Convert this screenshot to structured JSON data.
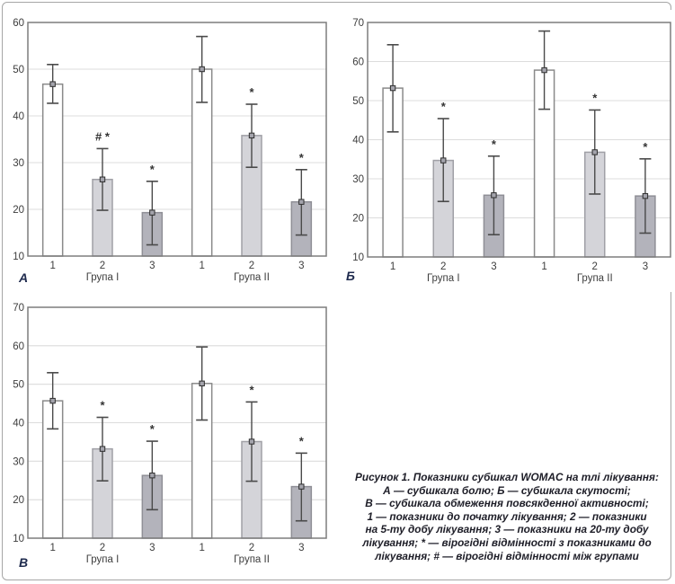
{
  "figure": {
    "caption": {
      "lines": [
        "Рисунок 1. Показники субшкал WOMAC на тлі лікування:",
        "А — субшкала болю; Б — субшкала скутості;",
        "В — субшкала обмеження повсякденної активності;",
        "1 — показники до початку лікування; 2 — показники",
        "на 5-ту добу лікування; 3 — показники на 20-ту добу",
        "лікування; * — вірогідні відмінності з показниками до",
        "лікування; # — вірогідні відмінності між групами"
      ]
    }
  },
  "colors": {
    "bar_white": "#ffffff",
    "bar_light": "#d4d4d9",
    "bar_dark": "#b3b3bb",
    "bar_stroke_white": "#8a8a8a",
    "bar_stroke_light": "#a0a0a6",
    "bar_stroke_dark": "#8f8f96",
    "error_bar": "#4a4a4a",
    "marker_fill": "#a4a4ac",
    "marker_stroke": "#2e2e2e",
    "gridline": "#dcdcdc",
    "plot_border": "#7d7d7d",
    "tick_text": "#3d3d3d",
    "annotation": "#333333",
    "panel_letter": "#1e2a4d"
  },
  "chart_data": [
    {
      "type": "bar",
      "panel_label": "А",
      "title": "",
      "xlabel": "",
      "ylabel": "",
      "ylim": [
        10,
        60
      ],
      "yticks": [
        10,
        20,
        30,
        40,
        50,
        60
      ],
      "grid": "horizontal",
      "legend": "none",
      "group_labels": [
        "Група I",
        "Група II"
      ],
      "categories": [
        "1",
        "2",
        "3",
        "1",
        "2",
        "3"
      ],
      "bars": [
        {
          "label": "1",
          "group": "Група I",
          "value": 46.8,
          "err_lo": 42.7,
          "err_hi": 51.0,
          "shade": "white",
          "annotation": ""
        },
        {
          "label": "2",
          "group": "Група I",
          "value": 26.4,
          "err_lo": 19.8,
          "err_hi": 33.0,
          "shade": "light",
          "annotation": "# *"
        },
        {
          "label": "3",
          "group": "Група I",
          "value": 19.3,
          "err_lo": 12.4,
          "err_hi": 26.0,
          "shade": "dark",
          "annotation": "*"
        },
        {
          "label": "1",
          "group": "Група II",
          "value": 50.0,
          "err_lo": 42.9,
          "err_hi": 57.0,
          "shade": "white",
          "annotation": ""
        },
        {
          "label": "2",
          "group": "Група II",
          "value": 35.8,
          "err_lo": 29.0,
          "err_hi": 42.5,
          "shade": "light",
          "annotation": "*"
        },
        {
          "label": "3",
          "group": "Група II",
          "value": 21.6,
          "err_lo": 14.5,
          "err_hi": 28.5,
          "shade": "dark",
          "annotation": "*"
        }
      ]
    },
    {
      "type": "bar",
      "panel_label": "Б",
      "title": "",
      "xlabel": "",
      "ylabel": "",
      "ylim": [
        10,
        70
      ],
      "yticks": [
        10,
        20,
        30,
        40,
        50,
        60,
        70
      ],
      "grid": "horizontal",
      "legend": "none",
      "group_labels": [
        "Група I",
        "Група II"
      ],
      "categories": [
        "1",
        "2",
        "3",
        "1",
        "2",
        "3"
      ],
      "bars": [
        {
          "label": "1",
          "group": "Група I",
          "value": 53.2,
          "err_lo": 42.0,
          "err_hi": 64.3,
          "shade": "white",
          "annotation": ""
        },
        {
          "label": "2",
          "group": "Група I",
          "value": 34.7,
          "err_lo": 24.2,
          "err_hi": 45.4,
          "shade": "light",
          "annotation": "*"
        },
        {
          "label": "3",
          "group": "Група I",
          "value": 25.8,
          "err_lo": 15.7,
          "err_hi": 35.8,
          "shade": "dark",
          "annotation": "*"
        },
        {
          "label": "1",
          "group": "Група II",
          "value": 57.8,
          "err_lo": 47.8,
          "err_hi": 67.8,
          "shade": "white",
          "annotation": ""
        },
        {
          "label": "2",
          "group": "Група II",
          "value": 36.8,
          "err_lo": 26.1,
          "err_hi": 47.6,
          "shade": "light",
          "annotation": "*"
        },
        {
          "label": "3",
          "group": "Група II",
          "value": 25.6,
          "err_lo": 16.1,
          "err_hi": 35.1,
          "shade": "dark",
          "annotation": "*"
        }
      ]
    },
    {
      "type": "bar",
      "panel_label": "В",
      "title": "",
      "xlabel": "",
      "ylabel": "",
      "ylim": [
        10,
        70
      ],
      "yticks": [
        10,
        20,
        30,
        40,
        50,
        60,
        70
      ],
      "grid": "horizontal",
      "legend": "none",
      "group_labels": [
        "Група I",
        "Група II"
      ],
      "categories": [
        "1",
        "2",
        "3",
        "1",
        "2",
        "3"
      ],
      "bars": [
        {
          "label": "1",
          "group": "Група I",
          "value": 45.7,
          "err_lo": 38.4,
          "err_hi": 53.0,
          "shade": "white",
          "annotation": ""
        },
        {
          "label": "2",
          "group": "Група I",
          "value": 33.2,
          "err_lo": 24.9,
          "err_hi": 41.4,
          "shade": "light",
          "annotation": "*"
        },
        {
          "label": "3",
          "group": "Група I",
          "value": 26.3,
          "err_lo": 17.4,
          "err_hi": 35.2,
          "shade": "dark",
          "annotation": "*"
        },
        {
          "label": "1",
          "group": "Група II",
          "value": 50.2,
          "err_lo": 40.7,
          "err_hi": 59.7,
          "shade": "white",
          "annotation": ""
        },
        {
          "label": "2",
          "group": "Група II",
          "value": 35.1,
          "err_lo": 24.8,
          "err_hi": 45.4,
          "shade": "light",
          "annotation": "*"
        },
        {
          "label": "3",
          "group": "Група II",
          "value": 23.4,
          "err_lo": 14.5,
          "err_hi": 32.1,
          "shade": "dark",
          "annotation": "*"
        }
      ]
    }
  ]
}
